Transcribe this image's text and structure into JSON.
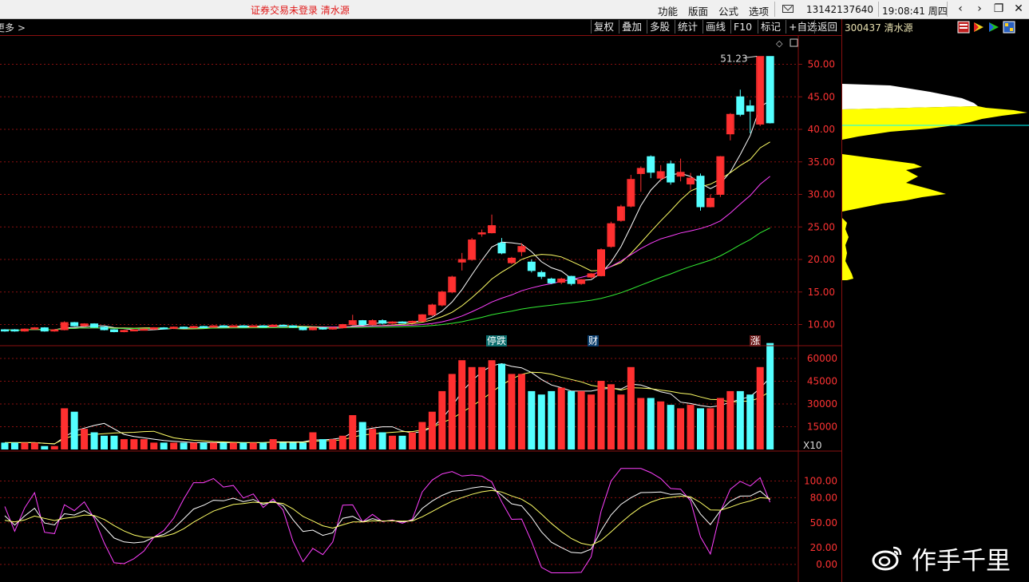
{
  "titlebar": {
    "title": "证券交易未登录  清水源",
    "menus": [
      "功能",
      "版面",
      "公式",
      "选项"
    ],
    "phone": "13142137640",
    "clock": "19:08:41 周四"
  },
  "toolbar": {
    "more_label": "更多 >",
    "buttons": [
      "复权",
      "叠加",
      "多股",
      "统计",
      "画线",
      "F10",
      "标记",
      "+自选",
      "返回"
    ]
  },
  "security": {
    "code_name": "300437 清水源"
  },
  "price_axis": [
    "50.00",
    "45.00",
    "40.00",
    "35.00",
    "30.00",
    "25.00",
    "20.00",
    "15.00",
    "10.00"
  ],
  "volume_axis": [
    "60000",
    "45000",
    "30000",
    "15000"
  ],
  "volume_unit": "X10",
  "osc_axis": [
    "100.00",
    "80.00",
    "50.00",
    "20.00",
    "0.00"
  ],
  "max_price_label": "51.23",
  "markers": {
    "limit_down": "停跌",
    "finance": "财",
    "rise": "涨"
  },
  "watermark": "作手千里",
  "colors": {
    "up": "#ff3030",
    "down": "#54ffff",
    "ma5": "#ffffff",
    "ma10": "#ffff66",
    "ma20": "#ff40ff",
    "ma60": "#33ee33",
    "grid": "#8a1010",
    "axis_text": "#ff3333"
  },
  "chart_data": {
    "type": "candlestick",
    "title": "",
    "candles": [
      [
        9.0,
        9.2,
        8.9,
        9.3,
        "down"
      ],
      [
        9.2,
        9.0,
        8.9,
        9.3,
        "down"
      ],
      [
        9.0,
        9.3,
        8.9,
        9.4,
        "up"
      ],
      [
        9.3,
        9.5,
        9.2,
        9.6,
        "up"
      ],
      [
        9.5,
        9.0,
        8.9,
        9.6,
        "down"
      ],
      [
        9.0,
        9.2,
        8.9,
        9.3,
        "up"
      ],
      [
        9.2,
        10.3,
        9.1,
        10.5,
        "up"
      ],
      [
        10.3,
        9.8,
        9.7,
        10.4,
        "down"
      ],
      [
        9.8,
        10.1,
        9.7,
        10.2,
        "up"
      ],
      [
        10.1,
        9.6,
        9.5,
        10.2,
        "down"
      ],
      [
        9.6,
        9.2,
        9.1,
        9.7,
        "down"
      ],
      [
        9.2,
        8.9,
        8.8,
        9.3,
        "down"
      ],
      [
        8.9,
        9.1,
        8.8,
        9.2,
        "up"
      ],
      [
        9.1,
        9.2,
        9.0,
        9.3,
        "up"
      ],
      [
        9.2,
        9.3,
        9.1,
        9.4,
        "up"
      ],
      [
        9.3,
        9.5,
        9.2,
        9.6,
        "up"
      ],
      [
        9.5,
        9.4,
        9.3,
        9.6,
        "down"
      ],
      [
        9.4,
        9.6,
        9.3,
        9.7,
        "up"
      ],
      [
        9.6,
        9.5,
        9.4,
        9.7,
        "down"
      ],
      [
        9.5,
        9.7,
        9.4,
        9.8,
        "up"
      ],
      [
        9.7,
        9.6,
        9.5,
        9.8,
        "down"
      ],
      [
        9.6,
        9.8,
        9.5,
        9.9,
        "up"
      ],
      [
        9.8,
        9.7,
        9.6,
        9.9,
        "down"
      ],
      [
        9.7,
        9.8,
        9.6,
        9.9,
        "up"
      ],
      [
        9.8,
        9.7,
        9.6,
        9.9,
        "down"
      ],
      [
        9.7,
        9.8,
        9.6,
        9.9,
        "up"
      ],
      [
        9.8,
        9.7,
        9.6,
        9.9,
        "down"
      ],
      [
        9.7,
        9.9,
        9.6,
        10.0,
        "up"
      ],
      [
        9.9,
        9.8,
        9.7,
        10.0,
        "down"
      ],
      [
        9.8,
        9.6,
        9.5,
        9.9,
        "down"
      ],
      [
        9.6,
        9.2,
        9.1,
        9.7,
        "down"
      ],
      [
        9.2,
        9.5,
        9.1,
        9.6,
        "up"
      ],
      [
        9.5,
        9.3,
        9.2,
        9.6,
        "down"
      ],
      [
        9.3,
        9.5,
        9.2,
        9.6,
        "up"
      ],
      [
        9.5,
        10.0,
        9.4,
        10.1,
        "up"
      ],
      [
        10.0,
        10.6,
        9.9,
        11.5,
        "up"
      ],
      [
        10.6,
        10.0,
        9.9,
        10.7,
        "down"
      ],
      [
        10.0,
        10.6,
        9.9,
        10.8,
        "up"
      ],
      [
        10.6,
        10.2,
        10.0,
        10.8,
        "down"
      ],
      [
        10.2,
        10.4,
        10.1,
        10.5,
        "up"
      ],
      [
        10.4,
        10.3,
        10.2,
        10.5,
        "down"
      ],
      [
        10.3,
        10.5,
        10.2,
        10.6,
        "up"
      ],
      [
        10.5,
        11.5,
        10.4,
        11.6,
        "up"
      ],
      [
        11.5,
        13.0,
        11.3,
        13.2,
        "up"
      ],
      [
        13.0,
        15.0,
        12.8,
        15.2,
        "up"
      ],
      [
        15.0,
        17.3,
        14.8,
        17.5,
        "up"
      ],
      [
        19.6,
        20.0,
        18.3,
        21.0,
        "up"
      ],
      [
        20.0,
        23.0,
        19.8,
        23.3,
        "up"
      ],
      [
        24.1,
        24.1,
        23.5,
        24.6,
        "up"
      ],
      [
        24.1,
        25.2,
        24.0,
        26.9,
        "up"
      ],
      [
        22.5,
        21.0,
        20.8,
        23.3,
        "down"
      ],
      [
        20.2,
        19.5,
        19.3,
        20.4,
        "up"
      ],
      [
        21.2,
        22.0,
        20.5,
        22.5,
        "up"
      ],
      [
        19.6,
        18.3,
        18.0,
        20.0,
        "down"
      ],
      [
        18.0,
        17.4,
        17.0,
        18.3,
        "down"
      ],
      [
        17.0,
        16.4,
        16.2,
        17.2,
        "down"
      ],
      [
        16.5,
        17.0,
        16.2,
        17.2,
        "up"
      ],
      [
        17.4,
        16.3,
        16.0,
        17.5,
        "down"
      ],
      [
        16.3,
        16.9,
        16.1,
        17.0,
        "up"
      ],
      [
        17.3,
        17.8,
        17.1,
        17.9,
        "up"
      ],
      [
        17.5,
        21.5,
        17.4,
        21.7,
        "up"
      ],
      [
        22.0,
        25.5,
        21.8,
        25.8,
        "up"
      ],
      [
        26.0,
        28.1,
        25.8,
        28.4,
        "up"
      ],
      [
        28.2,
        32.3,
        28.0,
        33.0,
        "up"
      ],
      [
        33.2,
        34.0,
        30.4,
        34.3,
        "up"
      ],
      [
        35.8,
        33.4,
        32.5,
        36.0,
        "down"
      ],
      [
        32.5,
        33.5,
        32.0,
        34.5,
        "up"
      ],
      [
        34.7,
        31.9,
        31.5,
        35.2,
        "down"
      ],
      [
        32.8,
        33.4,
        32.0,
        35.5,
        "up"
      ],
      [
        32.5,
        31.6,
        30.7,
        33.3,
        "up"
      ],
      [
        32.8,
        28.1,
        27.5,
        33.2,
        "down"
      ],
      [
        28.1,
        29.4,
        28.0,
        30.0,
        "up"
      ],
      [
        30.0,
        35.8,
        29.6,
        35.9,
        "up"
      ],
      [
        39.3,
        42.3,
        38.3,
        42.5,
        "up"
      ],
      [
        42.3,
        45.0,
        42.0,
        46.1,
        "down"
      ],
      [
        43.6,
        42.8,
        39.4,
        44.5,
        "down"
      ],
      [
        40.8,
        51.2,
        40.5,
        51.2,
        "up"
      ],
      [
        51.2,
        41.0,
        40.9,
        51.2,
        "down"
      ]
    ],
    "volumes": [
      2,
      2,
      2,
      2,
      1,
      1,
      12,
      11,
      6,
      5,
      4,
      4,
      3,
      3,
      3,
      2,
      2,
      2,
      2,
      2,
      2,
      2,
      2,
      2,
      2,
      2,
      2,
      3,
      2,
      2,
      2,
      5,
      3,
      3,
      4,
      10,
      8,
      6,
      5,
      4,
      4,
      5,
      8,
      11,
      17,
      22,
      26,
      24,
      24,
      26,
      25,
      22,
      22,
      17,
      16,
      17,
      18,
      17,
      17,
      16,
      20,
      19,
      16,
      24,
      15,
      15,
      14,
      13,
      12,
      13,
      12,
      12,
      15,
      17,
      17,
      16,
      24,
      31
    ],
    "ma5": [],
    "ylim": [
      7.5,
      53.5
    ]
  }
}
